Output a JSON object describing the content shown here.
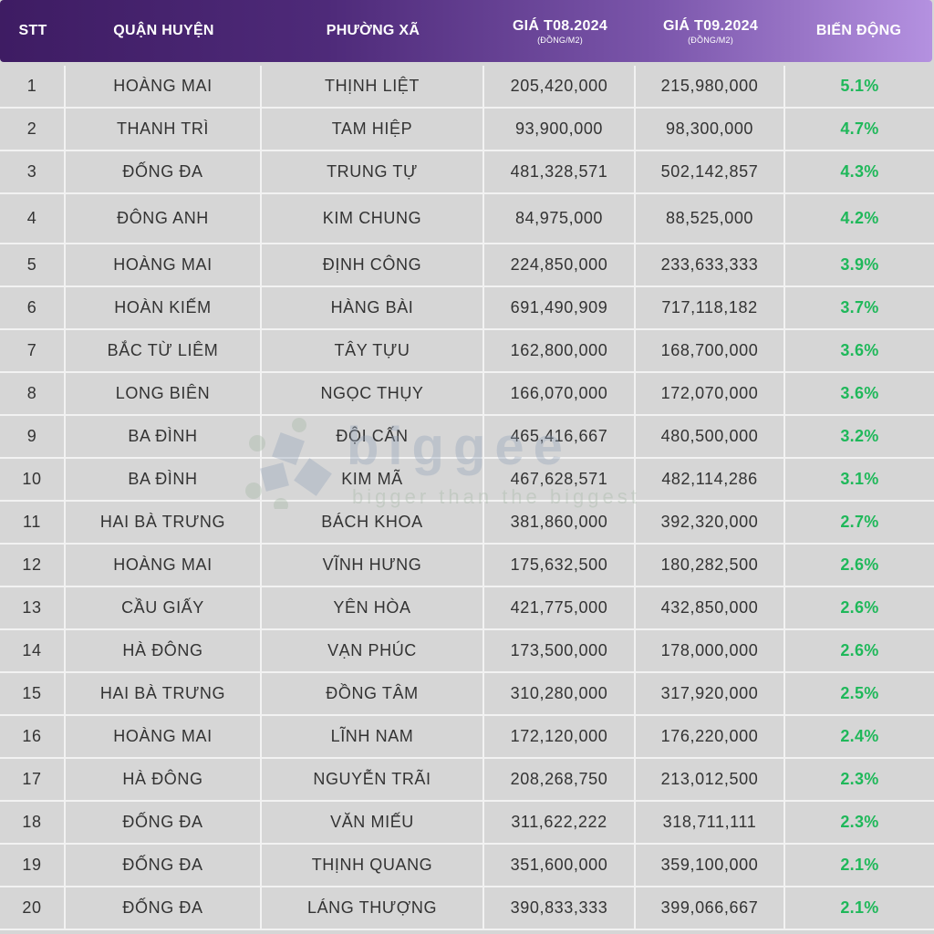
{
  "header": {
    "stt": "STT",
    "district": "QUẬN HUYỆN",
    "ward": "PHƯỜNG XÃ",
    "price_aug": "GIÁ T08.2024",
    "price_aug_unit": "(ĐỒNG/M2)",
    "price_sep": "GIÁ T09.2024",
    "price_sep_unit": "(ĐỒNG/M2)",
    "change": "BIẾN ĐỘNG"
  },
  "rows": [
    {
      "stt": "1",
      "district": "HOÀNG MAI",
      "ward": "THỊNH LIỆT",
      "aug": "205,420,000",
      "sep": "215,980,000",
      "change": "5.1%"
    },
    {
      "stt": "2",
      "district": "THANH TRÌ",
      "ward": "TAM HIỆP",
      "aug": "93,900,000",
      "sep": "98,300,000",
      "change": "4.7%"
    },
    {
      "stt": "3",
      "district": "ĐỐNG ĐA",
      "ward": "TRUNG TỰ",
      "aug": "481,328,571",
      "sep": "502,142,857",
      "change": "4.3%"
    },
    {
      "stt": "4",
      "district": "ĐÔNG ANH",
      "ward": "KIM CHUNG",
      "aug": "84,975,000",
      "sep": "88,525,000",
      "change": "4.2%"
    },
    {
      "stt": "5",
      "district": "HOÀNG MAI",
      "ward": "ĐỊNH CÔNG",
      "aug": "224,850,000",
      "sep": "233,633,333",
      "change": "3.9%"
    },
    {
      "stt": "6",
      "district": "HOÀN KIẾM",
      "ward": "HÀNG BÀI",
      "aug": "691,490,909",
      "sep": "717,118,182",
      "change": "3.7%"
    },
    {
      "stt": "7",
      "district": "BẮC TỪ LIÊM",
      "ward": "TÂY TỰU",
      "aug": "162,800,000",
      "sep": "168,700,000",
      "change": "3.6%"
    },
    {
      "stt": "8",
      "district": "LONG BIÊN",
      "ward": "NGỌC THỤY",
      "aug": "166,070,000",
      "sep": "172,070,000",
      "change": "3.6%"
    },
    {
      "stt": "9",
      "district": "BA ĐÌNH",
      "ward": "ĐỘI CẤN",
      "aug": "465,416,667",
      "sep": "480,500,000",
      "change": "3.2%"
    },
    {
      "stt": "10",
      "district": "BA ĐÌNH",
      "ward": "KIM MÃ",
      "aug": "467,628,571",
      "sep": "482,114,286",
      "change": "3.1%"
    },
    {
      "stt": "11",
      "district": "HAI BÀ TRƯNG",
      "ward": "BÁCH KHOA",
      "aug": "381,860,000",
      "sep": "392,320,000",
      "change": "2.7%"
    },
    {
      "stt": "12",
      "district": "HOÀNG MAI",
      "ward": "VĨNH HƯNG",
      "aug": "175,632,500",
      "sep": "180,282,500",
      "change": "2.6%"
    },
    {
      "stt": "13",
      "district": "CẦU GIẤY",
      "ward": "YÊN HÒA",
      "aug": "421,775,000",
      "sep": "432,850,000",
      "change": "2.6%"
    },
    {
      "stt": "14",
      "district": "HÀ ĐÔNG",
      "ward": "VẠN PHÚC",
      "aug": "173,500,000",
      "sep": "178,000,000",
      "change": "2.6%"
    },
    {
      "stt": "15",
      "district": "HAI BÀ TRƯNG",
      "ward": "ĐỒNG TÂM",
      "aug": "310,280,000",
      "sep": "317,920,000",
      "change": "2.5%"
    },
    {
      "stt": "16",
      "district": "HOÀNG MAI",
      "ward": "LĨNH NAM",
      "aug": "172,120,000",
      "sep": "176,220,000",
      "change": "2.4%"
    },
    {
      "stt": "17",
      "district": "HÀ ĐÔNG",
      "ward": "NGUYỄN TRÃI",
      "aug": "208,268,750",
      "sep": "213,012,500",
      "change": "2.3%"
    },
    {
      "stt": "18",
      "district": "ĐỐNG ĐA",
      "ward": "VĂN MIẾU",
      "aug": "311,622,222",
      "sep": "318,711,111",
      "change": "2.3%"
    },
    {
      "stt": "19",
      "district": "ĐỐNG ĐA",
      "ward": "THỊNH QUANG",
      "aug": "351,600,000",
      "sep": "359,100,000",
      "change": "2.1%"
    },
    {
      "stt": "20",
      "district": "ĐỐNG ĐA",
      "ward": "LÁNG THƯỢNG",
      "aug": "390,833,333",
      "sep": "399,066,667",
      "change": "2.1%"
    }
  ],
  "colors": {
    "change_positive": "#1fb85a",
    "header_start": "#3e1c63",
    "header_end": "#b491e0"
  },
  "watermark": {
    "brand": "biggee",
    "tagline": "bigger than the biggest"
  }
}
